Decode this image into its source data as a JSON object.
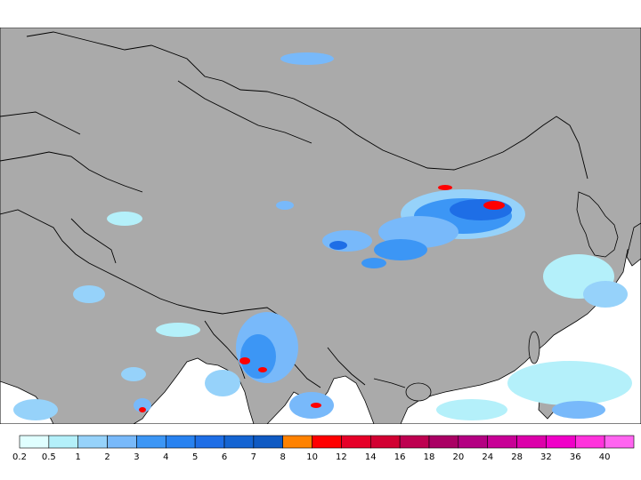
{
  "map": {
    "land_color": "#aaaaaa",
    "sea_color": "#ffffff",
    "border_color": "#000000"
  },
  "legend": {
    "unit_hint": "",
    "bins": [
      {
        "label": "0.2",
        "color": "#e0ffff"
      },
      {
        "label": "0.5",
        "color": "#b4f0fa"
      },
      {
        "label": "1",
        "color": "#96d2fa"
      },
      {
        "label": "2",
        "color": "#78b9fa"
      },
      {
        "label": "3",
        "color": "#3c96f5"
      },
      {
        "label": "4",
        "color": "#2882f0"
      },
      {
        "label": "5",
        "color": "#1e6ee6"
      },
      {
        "label": "6",
        "color": "#1464d2"
      },
      {
        "label": "7",
        "color": "#0f5ac3"
      },
      {
        "label": "8",
        "color": "#ff8200"
      },
      {
        "label": "10",
        "color": "#ff0000"
      },
      {
        "label": "12",
        "color": "#e60028"
      },
      {
        "label": "14",
        "color": "#d20032"
      },
      {
        "label": "16",
        "color": "#be0050"
      },
      {
        "label": "18",
        "color": "#aa0064"
      },
      {
        "label": "20",
        "color": "#b40082"
      },
      {
        "label": "24",
        "color": "#c80096"
      },
      {
        "label": "28",
        "color": "#dc00aa"
      },
      {
        "label": "32",
        "color": "#f000c8"
      },
      {
        "label": "36",
        "color": "#ff32dc"
      },
      {
        "label": "40",
        "color": "#ff64f0"
      }
    ]
  }
}
